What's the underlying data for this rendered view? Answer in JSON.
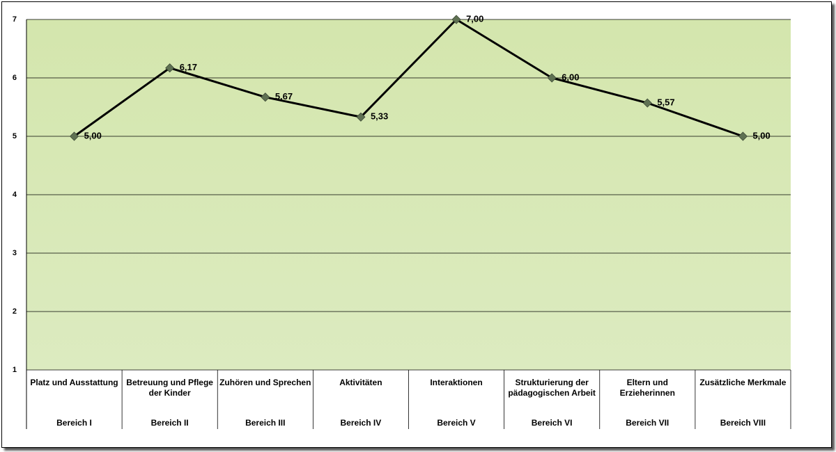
{
  "chart_data": {
    "type": "line",
    "categories": [
      "Platz und Ausstattung",
      "Betreuung und Pflege der Kinder",
      "Zuhören und Sprechen",
      "Aktivitäten",
      "Interaktionen",
      "Strukturierung der pädagogischen Arbeit",
      "Eltern und Erzieherinnen",
      "Zusätzliche Merkmale"
    ],
    "category_groups": [
      "Bereich I",
      "Bereich II",
      "Bereich III",
      "Bereich IV",
      "Bereich V",
      "Bereich VI",
      "Bereich VII",
      "Bereich VIII"
    ],
    "series": [
      {
        "color": "#000000",
        "marker_color": "#5f7153",
        "values": [
          5.0,
          6.17,
          5.67,
          5.33,
          7.0,
          6.0,
          5.57,
          5.0
        ],
        "value_labels": [
          "5,00",
          "6,17",
          "5,67",
          "5,33",
          "7,00",
          "6,00",
          "5,57",
          "5,00"
        ]
      }
    ],
    "ylim": [
      1,
      7
    ],
    "yticks": [
      1,
      2,
      3,
      4,
      5,
      6,
      7
    ],
    "grid": true
  }
}
